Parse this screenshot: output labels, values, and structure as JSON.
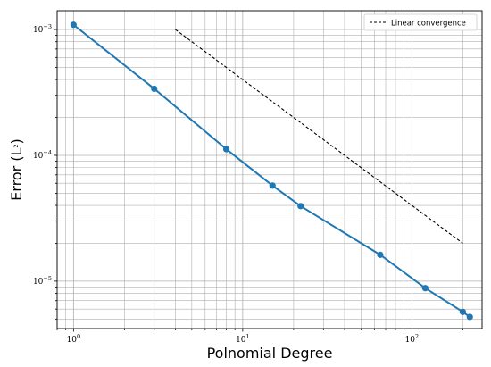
{
  "chart_data": {
    "type": "line",
    "xscale": "log",
    "yscale": "log",
    "xlabel": "Polnomial Degree",
    "ylabel_main": "Error (L",
    "ylabel_sup": "2",
    "ylabel_end": ")",
    "xlim": [
      0.8,
      260
    ],
    "ylim": [
      4.2e-06,
      0.00141
    ],
    "grid": true,
    "legend_position": "top-right",
    "x_ticks": [
      {
        "value": 1,
        "base": "10",
        "exp": "0"
      },
      {
        "value": 10,
        "base": "10",
        "exp": "1"
      },
      {
        "value": 100,
        "base": "10",
        "exp": "2"
      }
    ],
    "y_ticks": [
      {
        "value": 1e-05,
        "base": "10",
        "exp": "−5"
      },
      {
        "value": 0.0001,
        "base": "10",
        "exp": "−4"
      },
      {
        "value": 0.001,
        "base": "10",
        "exp": "−3"
      }
    ],
    "series": [
      {
        "kind": "data",
        "color": "#1f77b4",
        "x": [
          1,
          3,
          8,
          15,
          22,
          65,
          120,
          200,
          220
        ],
        "y": [
          0.00109,
          0.000338,
          0.000112,
          5.75e-05,
          3.95e-05,
          1.62e-05,
          8.8e-06,
          5.7e-06,
          5.2e-06
        ]
      },
      {
        "kind": "reference",
        "name": "Linear convergence",
        "color": "#000000",
        "dash": true,
        "x": [
          4,
          200
        ],
        "y": [
          0.001,
          2e-05
        ]
      }
    ]
  }
}
